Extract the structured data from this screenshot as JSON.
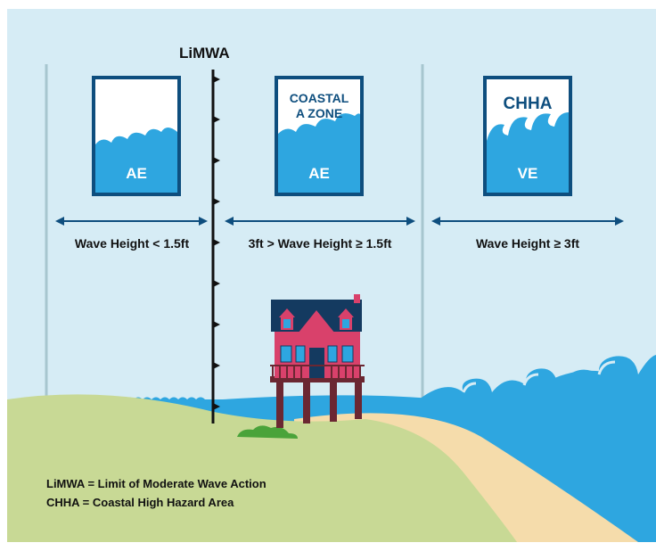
{
  "title": "LiMWA",
  "colors": {
    "sky": "#d6ecf5",
    "water": "#2ea6e0",
    "dark_blue": "#0e4e7e",
    "zone_line": "#a7c6cf",
    "grass": "#c8d995",
    "sand": "#f5dcab",
    "house_pink": "#d9416b",
    "roof": "#143a60",
    "posts": "#6b2732",
    "bush": "#4aa33a"
  },
  "zones": [
    {
      "key": "ae",
      "box_label": "AE",
      "box_header": "",
      "range_label": "Wave Height < 1.5ft"
    },
    {
      "key": "coastal_a",
      "box_label": "AE",
      "box_header": [
        "COASTAL",
        "A ZONE"
      ],
      "range_label": "3ft > Wave Height ≥ 1.5ft"
    },
    {
      "key": "chha",
      "box_label": "VE",
      "box_header": "CHHA",
      "range_label": "Wave Height ≥ 3ft"
    }
  ],
  "legend": [
    "LiMWA = Limit of Moderate Wave Action",
    "CHHA = Coastal High Hazard Area"
  ]
}
